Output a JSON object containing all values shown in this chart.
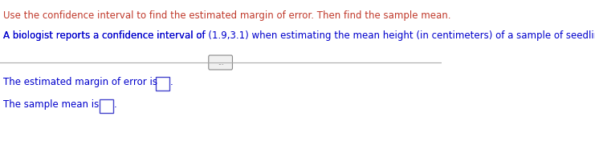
{
  "line1": "Use the confidence interval to find the estimated margin of error. Then find the sample mean.",
  "line1_color": "#c0392b",
  "line2_prefix": "A biologist reports a confidence interval of ",
  "line2_interval": "(1.9,3.1)",
  "line2_suffix": " when estimating the mean height (in centimeters) of a sample of seedlings.",
  "line2_color_normal": "#0000cc",
  "line2_color_interval": "#000000",
  "divider_color": "#aaaaaa",
  "dots_text": "...",
  "label1_prefix": "The estimated margin of error is ",
  "label1_color": "#0000cc",
  "label2_prefix": "The sample mean is ",
  "label2_color": "#0000cc",
  "box_color": "#4444cc",
  "background_color": "#ffffff"
}
